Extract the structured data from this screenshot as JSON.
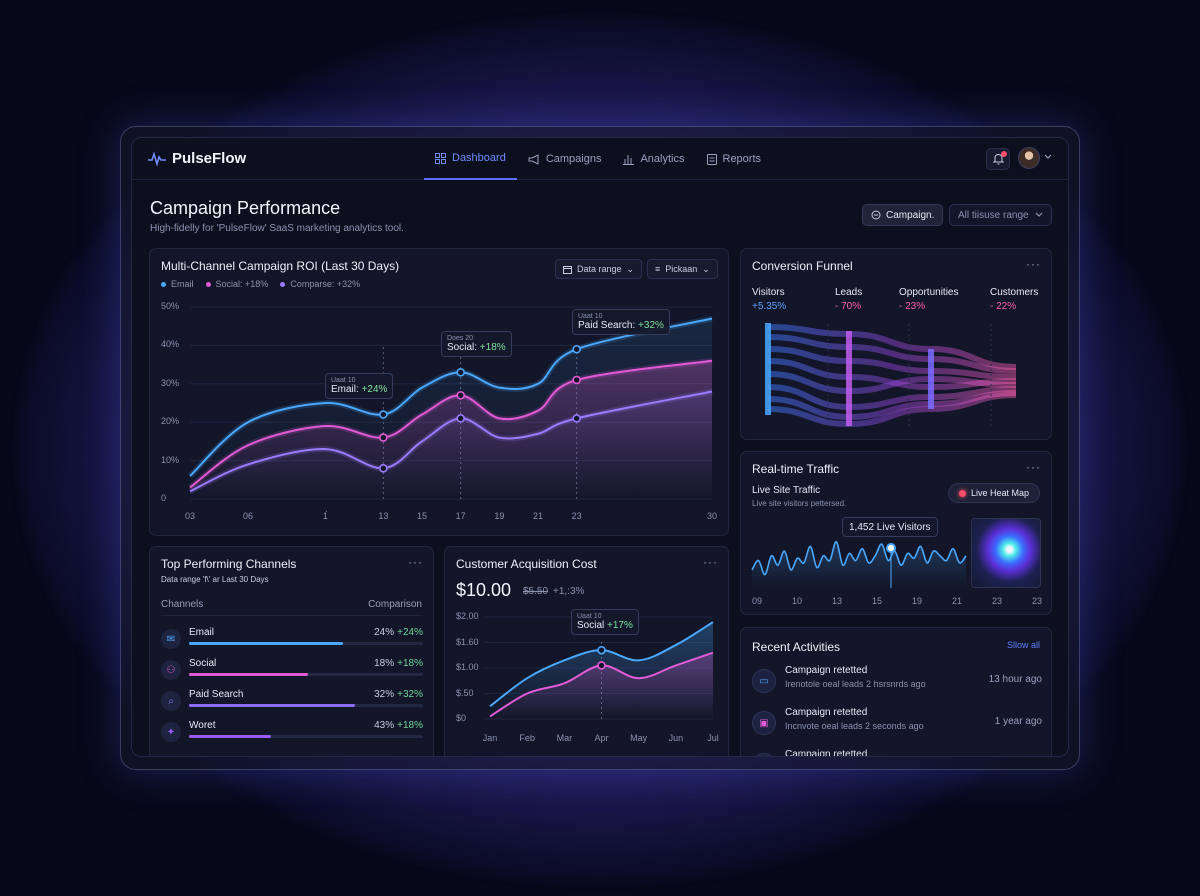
{
  "app": {
    "name": "PulseFlow"
  },
  "nav": [
    {
      "label": "Dashboard",
      "icon": "grid-icon",
      "active": true
    },
    {
      "label": "Campaigns",
      "icon": "megaphone-icon",
      "active": false
    },
    {
      "label": "Analytics",
      "icon": "bar-chart-icon",
      "active": false
    },
    {
      "label": "Reports",
      "icon": "document-icon",
      "active": false
    }
  ],
  "header": {
    "title": "Campaign Performance",
    "subtitle": "High-fidelly for 'PulseFlow' SaaS marketing analytics tool.",
    "campaign_button": "Campaign.",
    "range_select": "All tiisuse range"
  },
  "roi": {
    "title": "Multi-Channel Campaign ROI (Last 30 Days)",
    "date_select": "Data range",
    "picker_select": "Pickaan",
    "legend": [
      "Email",
      "Social: +18%",
      "Comparse: +32%"
    ],
    "tooltips": [
      {
        "small": "Uaat 10",
        "label": "Email:",
        "delta": "+24%"
      },
      {
        "small": "Does 20",
        "label": "Social:",
        "delta": "+18%"
      },
      {
        "small": "Uaat 10",
        "label": "Paid Search:",
        "delta": "+32%"
      }
    ]
  },
  "funnel": {
    "title": "Conversion Funnel",
    "stages": [
      {
        "name": "Visitors",
        "value": "+5.35%",
        "color": "#5aa0ff"
      },
      {
        "name": "Leads",
        "value": "- 70%",
        "color": "#ff5fb0"
      },
      {
        "name": "Opportunities",
        "value": "- 23%",
        "color": "#ff5fb0"
      },
      {
        "name": "Customers",
        "value": "- 22%",
        "color": "#ff5fb0"
      }
    ]
  },
  "traffic": {
    "title": "Real-time Traffic",
    "subtitle": "Live Site Traffic",
    "note": "Live site visitors pettersed.",
    "heatmap_button": "Live Heat Map",
    "live_label": "1,452 Live Visitors",
    "x_ticks": [
      "09",
      "10",
      "13",
      "15",
      "19",
      "21",
      "23",
      "23"
    ]
  },
  "channels": {
    "title": "Top Performing Channels",
    "subtitle": "Data range 'f\\' ar Last 30 Days",
    "col_left": "Channels",
    "col_right": "Comparison",
    "rows": [
      {
        "name": "Email",
        "value": "24%",
        "delta": "+24%",
        "fill": 0.66,
        "color": "#4aa8ff",
        "icon": "mail-icon"
      },
      {
        "name": "Social",
        "value": "18%",
        "delta": "+18%",
        "fill": 0.51,
        "color": "#e35ad6",
        "icon": "users-icon"
      },
      {
        "name": "Paid Search",
        "value": "32%",
        "delta": "+32%",
        "fill": 0.71,
        "color": "#8a6dff",
        "icon": "search-icon"
      },
      {
        "name": "Woret",
        "value": "43%",
        "delta": "+18%",
        "fill": 0.35,
        "color": "#9b5cff",
        "icon": "star-icon"
      }
    ]
  },
  "cac": {
    "title": "Customer Acquisition Cost",
    "value": "$10.00",
    "prev": "$5.50",
    "delta": "+1,:3%",
    "tooltip_small": "Uaat 10",
    "tooltip_label": "Social",
    "tooltip_delta": "+17%"
  },
  "activities": {
    "title": "Recent Activities",
    "show_all": "Sllow all",
    "items": [
      {
        "title": "Campaign retetted",
        "sub": "Irenotole oeal leads 2 hsrsnrds ago",
        "time": "13 hour ago",
        "icon": "chat-icon"
      },
      {
        "title": "Campaign retetted",
        "sub": "Incnvote oeal leads 2 seconds ago",
        "time": "1 year ago",
        "icon": "inbox-icon"
      },
      {
        "title": "Campaign retetted",
        "sub": "",
        "time": "",
        "icon": "activity-icon"
      }
    ]
  },
  "chart_data": [
    {
      "type": "line",
      "title": "Multi-Channel Campaign ROI (Last 30 Days)",
      "x": [
        3,
        6,
        10,
        13,
        15,
        17,
        19,
        21,
        23,
        30
      ],
      "x_ticks": [
        "03",
        "06",
        "1̀",
        "13",
        "15",
        "17",
        "19",
        "21",
        "23",
        "30"
      ],
      "y_ticks": [
        "50%",
        "40%",
        "30%",
        "20%",
        "10%",
        "0"
      ],
      "ylim": [
        0,
        50
      ],
      "series": [
        {
          "name": "Email",
          "color": "#4aa8ff",
          "values": [
            6,
            20,
            25,
            22,
            29,
            33,
            29,
            30,
            39,
            47
          ]
        },
        {
          "name": "Social",
          "color": "#e35ad6",
          "values": [
            3,
            14,
            19,
            16,
            22,
            27,
            21,
            23,
            31,
            36
          ]
        },
        {
          "name": "Comparse",
          "color": "#9b7bff",
          "values": [
            2,
            9,
            13,
            8,
            15,
            21,
            16,
            17,
            21,
            28
          ]
        }
      ]
    },
    {
      "type": "line",
      "title": "Customer Acquisition Cost",
      "x": [
        "Jan",
        "Feb",
        "Mar",
        "Apr",
        "May",
        "Jun",
        "Jul"
      ],
      "y_ticks": [
        "$2.00",
        "$1.60",
        "$1.00",
        "$.50",
        "$0"
      ],
      "series": [
        {
          "color": "#4aa8ff",
          "values": [
            0.25,
            0.8,
            1.15,
            1.35,
            1.15,
            1.45,
            1.9
          ]
        },
        {
          "color": "#e35ad6",
          "values": [
            0.05,
            0.5,
            0.7,
            1.05,
            0.8,
            1.05,
            1.3
          ]
        }
      ]
    }
  ]
}
